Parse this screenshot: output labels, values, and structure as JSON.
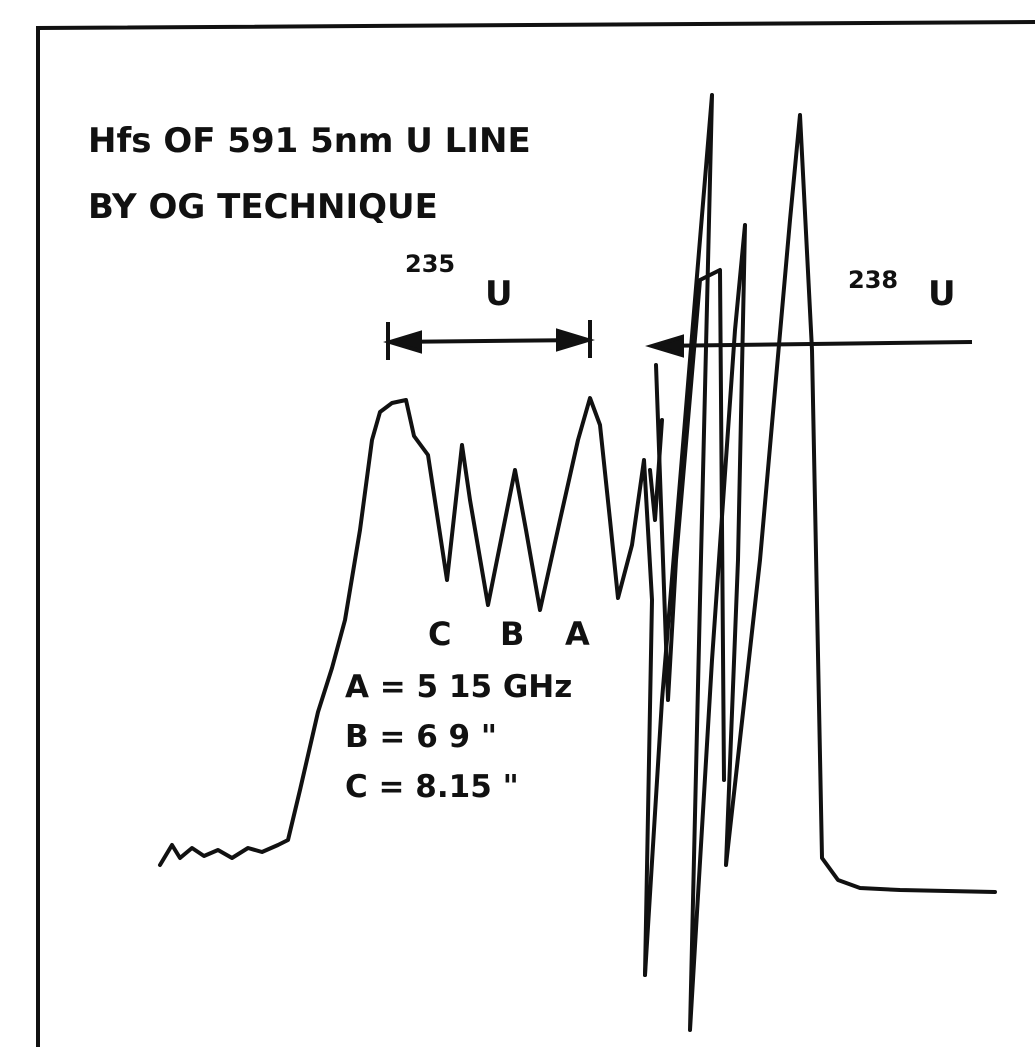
{
  "title": [
    "Hfs OF 591 5nm U LINE",
    "BY OG TECHNIQUE"
  ],
  "isotopes": [
    {
      "mass": "235",
      "symbol": "U"
    },
    {
      "mass": "238",
      "symbol": "U"
    }
  ],
  "peak_labels": [
    "C",
    "B",
    "A"
  ],
  "legend": [
    "A = 5 15 GHz",
    "B = 6 9 \"",
    "C = 8.15 \""
  ]
}
